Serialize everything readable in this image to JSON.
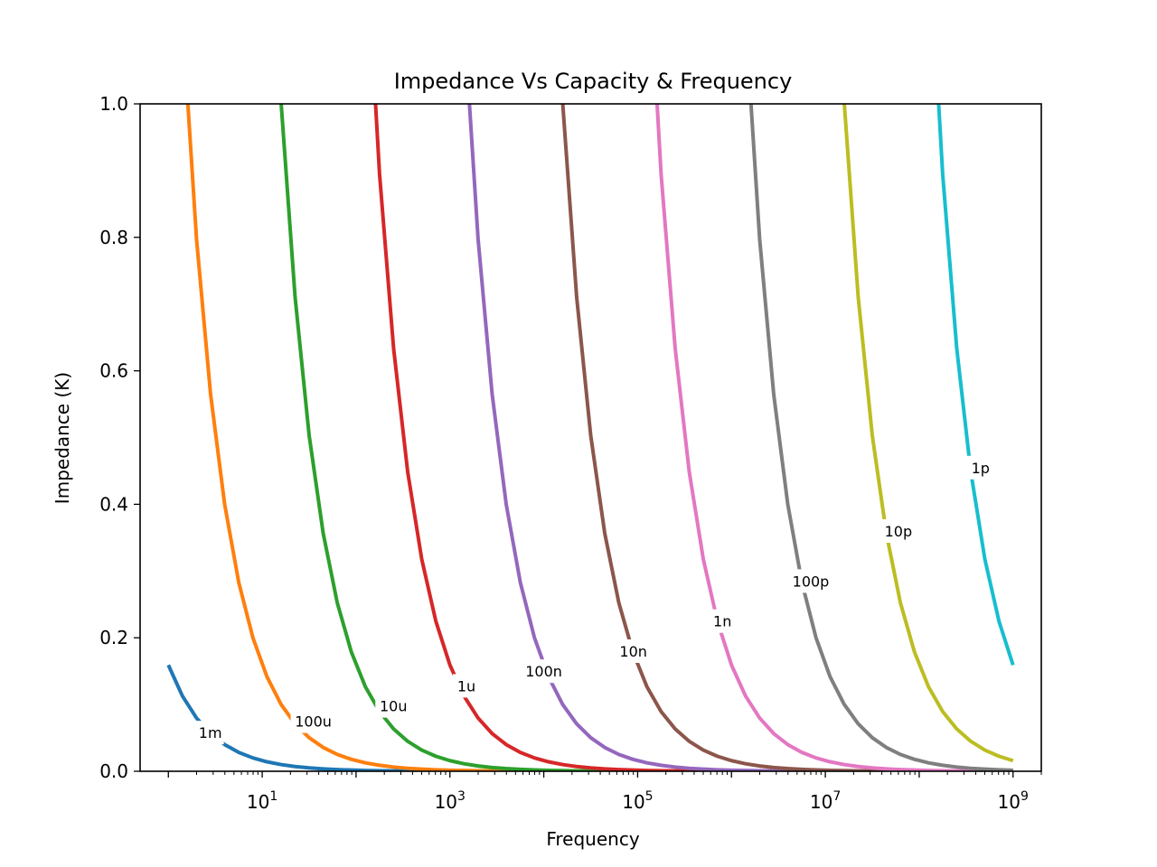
{
  "chart_data": {
    "type": "line",
    "title": "Impedance Vs Capacity & Frequency",
    "xlabel": "Frequency",
    "ylabel": "Impedance (K)",
    "xscale": "log",
    "xlim": [
      0.5,
      2000000000
    ],
    "ylim": [
      0,
      1
    ],
    "x_ticks": [
      {
        "base": "10",
        "exp": "1",
        "value": 10
      },
      {
        "base": "10",
        "exp": "3",
        "value": 1000
      },
      {
        "base": "10",
        "exp": "5",
        "value": 100000
      },
      {
        "base": "10",
        "exp": "7",
        "value": 10000000
      },
      {
        "base": "10",
        "exp": "9",
        "value": 1000000000
      }
    ],
    "y_ticks": [
      "0.0",
      "0.2",
      "0.4",
      "0.6",
      "0.8",
      "1.0"
    ],
    "grid": false,
    "x_range": [
      1,
      1000000000
    ],
    "series": [
      {
        "name": "1m",
        "color": "#1f77b4",
        "capacitance": 0.001,
        "label_at": {
          "x": 2.8,
          "y": 0.058
        }
      },
      {
        "name": "100u",
        "color": "#ff7f0e",
        "capacitance": 0.0001,
        "label_at": {
          "x": 35,
          "y": 0.075
        }
      },
      {
        "name": "10u",
        "color": "#2ca02c",
        "capacitance": 1e-05,
        "label_at": {
          "x": 250,
          "y": 0.098
        }
      },
      {
        "name": "1u",
        "color": "#d62728",
        "capacitance": 1e-06,
        "label_at": {
          "x": 1500,
          "y": 0.128
        }
      },
      {
        "name": "100n",
        "color": "#9467bd",
        "capacitance": 1e-07,
        "label_at": {
          "x": 10000,
          "y": 0.15
        }
      },
      {
        "name": "10n",
        "color": "#8c564b",
        "capacitance": 1e-08,
        "label_at": {
          "x": 90000,
          "y": 0.18
        }
      },
      {
        "name": "1n",
        "color": "#e377c2",
        "capacitance": 1e-09,
        "label_at": {
          "x": 800000,
          "y": 0.225
        }
      },
      {
        "name": "100p",
        "color": "#7f7f7f",
        "capacitance": 1e-10,
        "label_at": {
          "x": 7000000,
          "y": 0.285
        }
      },
      {
        "name": "10p",
        "color": "#bcbd22",
        "capacitance": 1e-11,
        "label_at": {
          "x": 60000000,
          "y": 0.36
        }
      },
      {
        "name": "1p",
        "color": "#17becf",
        "capacitance": 1e-12,
        "label_at": {
          "x": 450000000,
          "y": 0.455
        }
      }
    ]
  }
}
